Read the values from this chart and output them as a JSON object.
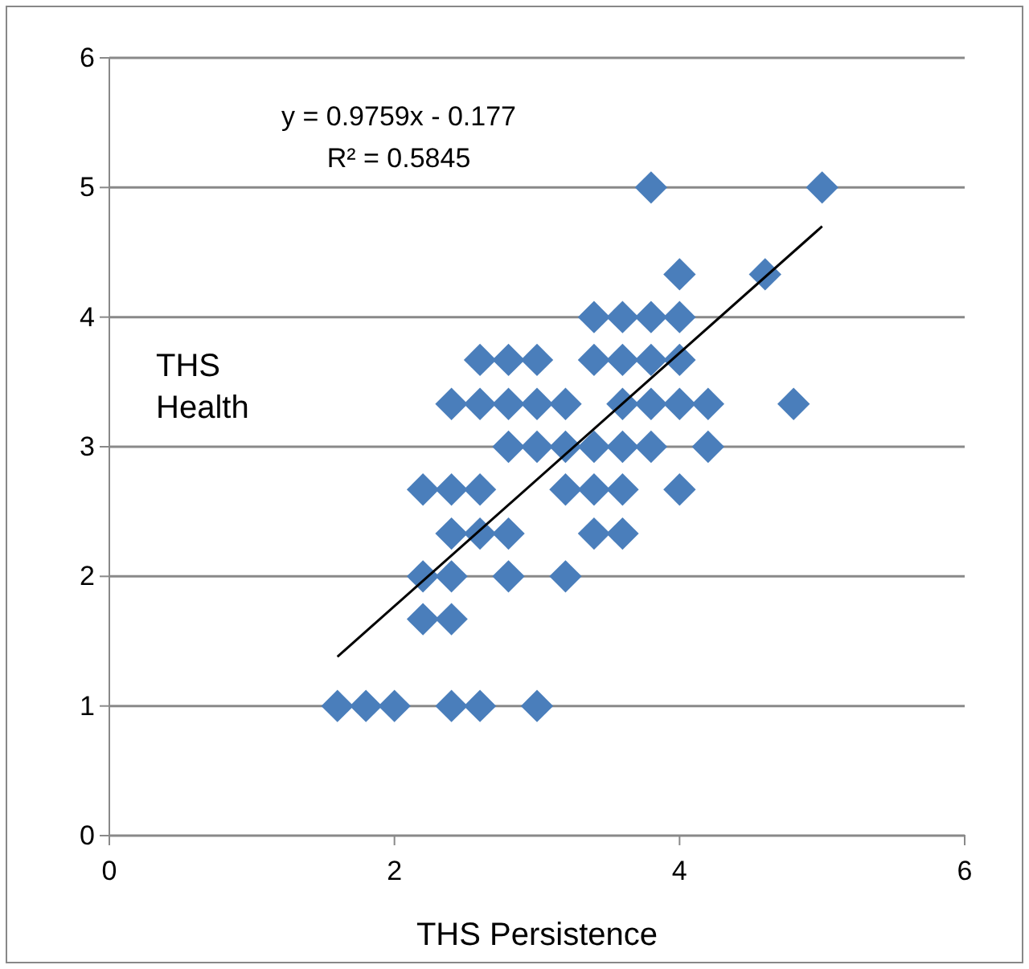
{
  "chart_data": {
    "type": "scatter",
    "xlabel": "THS Persistence",
    "ylabel": "THS Health",
    "xlim": [
      0,
      6
    ],
    "ylim": [
      0,
      6
    ],
    "xticks": [
      0,
      2,
      4,
      6
    ],
    "yticks": [
      0,
      1,
      2,
      3,
      4,
      5,
      6
    ],
    "grid": "y",
    "annotations": [
      "y = 0.9759x - 0.177",
      "R² = 0.5845"
    ],
    "series": [
      {
        "color": "#4a7ebb",
        "marker": "diamond",
        "x": [
          1.6,
          1.8,
          2.0,
          2.4,
          2.6,
          3.0,
          2.2,
          2.4,
          2.2,
          2.4,
          2.8,
          3.2,
          2.4,
          2.6,
          2.8,
          3.4,
          3.6,
          2.2,
          2.4,
          2.6,
          3.2,
          3.4,
          3.6,
          4.0,
          2.8,
          3.0,
          3.2,
          3.4,
          3.6,
          3.8,
          4.2,
          2.4,
          2.6,
          2.8,
          3.0,
          3.2,
          3.6,
          3.8,
          4.0,
          4.2,
          4.8,
          2.6,
          2.8,
          3.0,
          3.4,
          3.6,
          3.8,
          4.0,
          3.4,
          3.6,
          3.8,
          4.0,
          4.0,
          4.6,
          3.8,
          5.0
        ],
        "values": [
          1,
          1,
          1,
          1,
          1,
          1,
          1.67,
          1.67,
          2,
          2,
          2,
          2,
          2.33,
          2.33,
          2.33,
          2.33,
          2.33,
          2.67,
          2.67,
          2.67,
          2.67,
          2.67,
          2.67,
          2.67,
          3,
          3,
          3,
          3,
          3,
          3,
          3,
          3.33,
          3.33,
          3.33,
          3.33,
          3.33,
          3.33,
          3.33,
          3.33,
          3.33,
          3.33,
          3.67,
          3.67,
          3.67,
          3.67,
          3.67,
          3.67,
          3.67,
          4,
          4,
          4,
          4,
          4.33,
          4.33,
          5,
          5
        ]
      },
      {
        "type": "line",
        "marker": "none",
        "color": "#000000",
        "x": [
          1.6,
          5.0
        ],
        "values": [
          1.38,
          4.7
        ]
      }
    ]
  }
}
